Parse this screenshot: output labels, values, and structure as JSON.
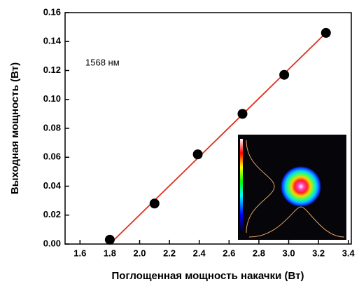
{
  "chart_data": {
    "type": "scatter",
    "xlabel": "Поглощенная мощность накачки (Вт)",
    "ylabel": "Выходная мощность (Вт)",
    "annotation": "1568 нм",
    "points": {
      "color": "#000000",
      "x": [
        1.8,
        2.1,
        2.39,
        2.69,
        2.97,
        3.25
      ],
      "y": [
        0.003,
        0.028,
        0.062,
        0.09,
        0.117,
        0.146
      ]
    },
    "fit": {
      "color": "#e0301e",
      "x": [
        1.8,
        3.25
      ],
      "y": [
        0,
        0.146
      ]
    },
    "xlim": [
      1.5,
      3.42
    ],
    "ylim": [
      0,
      0.16
    ],
    "xticks": [
      1.6,
      1.8,
      {
        "value": 2,
        "label": "2.0"
      },
      2.2,
      2.4,
      2.6,
      2.8,
      {
        "value": 3,
        "label": "3.0"
      },
      3.2,
      3.4
    ],
    "yticks": [
      {
        "value": 0,
        "label": "0.00"
      },
      0.02,
      0.04,
      0.06,
      0.08,
      {
        "value": 0.1,
        "label": "0.10"
      },
      0.12,
      0.14,
      0.16
    ]
  }
}
